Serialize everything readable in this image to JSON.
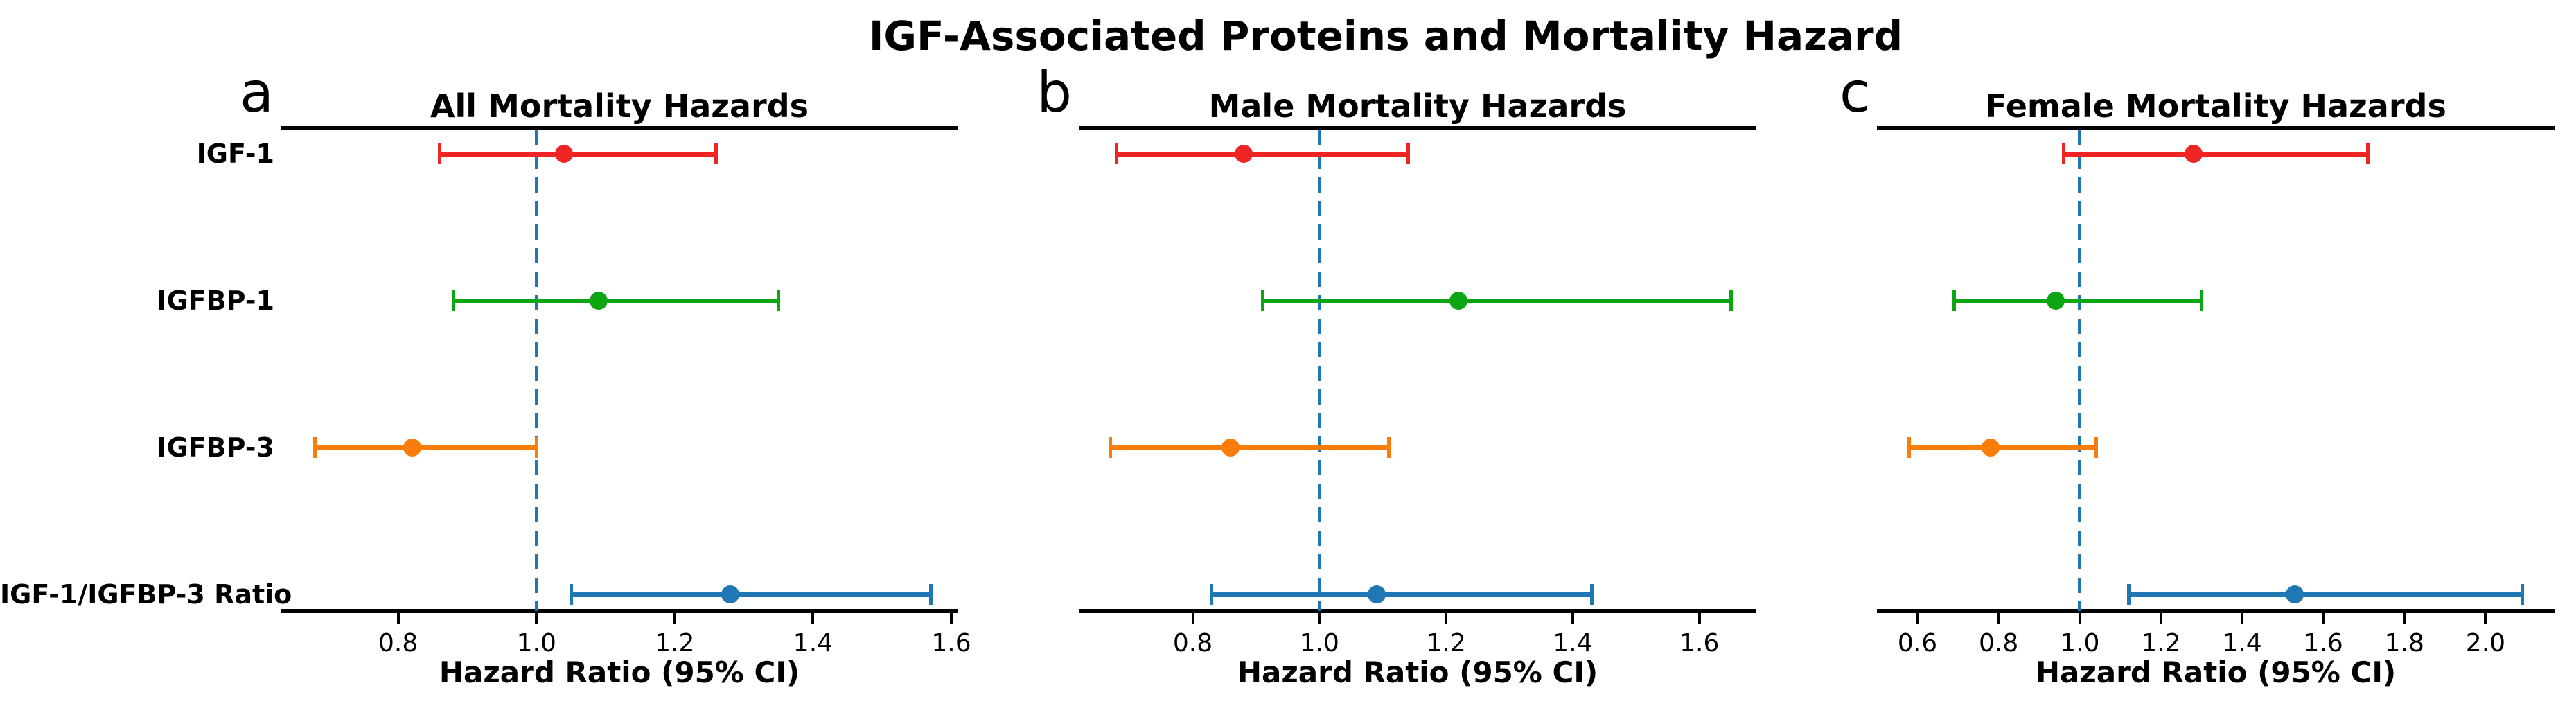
{
  "suptitle": "IGF-Associated Proteins and Mortality Hazard",
  "row_labels": [
    "IGF-1",
    "IGFBP-1",
    "IGFBP-3",
    "IGF-1/IGFBP-3 Ratio"
  ],
  "reference_value": 1.0,
  "colors": {
    "igf1": "#ef2424",
    "igfbp1": "#0ba612",
    "igfbp3": "#fa7d09",
    "ratio": "#1f77b4",
    "reference_line": "#1f77b4",
    "axis": "#000000"
  },
  "chart_data": [
    {
      "type": "scatter",
      "panel_letter": "a",
      "title": "All Mortality Hazards",
      "xlabel": "Hazard Ratio (95% CI)",
      "xlim": [
        0.63,
        1.61
      ],
      "xticks": [
        0.8,
        1.0,
        1.2,
        1.4,
        1.6
      ],
      "reference_line": 1.0,
      "show_row_labels": true,
      "rows": [
        {
          "label": "IGF-1",
          "hr": 1.04,
          "ci_low": 0.86,
          "ci_high": 1.26,
          "color": "#ef2424"
        },
        {
          "label": "IGFBP-1",
          "hr": 1.09,
          "ci_low": 0.88,
          "ci_high": 1.35,
          "color": "#0ba612"
        },
        {
          "label": "IGFBP-3",
          "hr": 0.82,
          "ci_low": 0.68,
          "ci_high": 1.0,
          "color": "#fa7d09"
        },
        {
          "label": "IGF-1/IGFBP-3 Ratio",
          "hr": 1.28,
          "ci_low": 1.05,
          "ci_high": 1.57,
          "color": "#1f77b4"
        }
      ]
    },
    {
      "type": "scatter",
      "panel_letter": "b",
      "title": "Male Mortality Hazards",
      "xlabel": "Hazard Ratio (95% CI)",
      "xlim": [
        0.62,
        1.69
      ],
      "xticks": [
        0.8,
        1.0,
        1.2,
        1.4,
        1.6
      ],
      "reference_line": 1.0,
      "show_row_labels": false,
      "rows": [
        {
          "label": "IGF-1",
          "hr": 0.88,
          "ci_low": 0.68,
          "ci_high": 1.14,
          "color": "#ef2424"
        },
        {
          "label": "IGFBP-1",
          "hr": 1.22,
          "ci_low": 0.91,
          "ci_high": 1.65,
          "color": "#0ba612"
        },
        {
          "label": "IGFBP-3",
          "hr": 0.86,
          "ci_low": 0.67,
          "ci_high": 1.11,
          "color": "#fa7d09"
        },
        {
          "label": "IGF-1/IGFBP-3 Ratio",
          "hr": 1.09,
          "ci_low": 0.83,
          "ci_high": 1.43,
          "color": "#1f77b4"
        }
      ]
    },
    {
      "type": "scatter",
      "panel_letter": "c",
      "title": "Female Mortality Hazards",
      "xlabel": "Hazard Ratio (95% CI)",
      "xlim": [
        0.5,
        2.17
      ],
      "xticks": [
        0.6,
        0.8,
        1.0,
        1.2,
        1.4,
        1.6,
        1.8,
        2.0
      ],
      "reference_line": 1.0,
      "show_row_labels": false,
      "rows": [
        {
          "label": "IGF-1",
          "hr": 1.28,
          "ci_low": 0.96,
          "ci_high": 1.71,
          "color": "#ef2424"
        },
        {
          "label": "IGFBP-1",
          "hr": 0.94,
          "ci_low": 0.69,
          "ci_high": 1.3,
          "color": "#0ba612"
        },
        {
          "label": "IGFBP-3",
          "hr": 0.78,
          "ci_low": 0.58,
          "ci_high": 1.04,
          "color": "#fa7d09"
        },
        {
          "label": "IGF-1/IGFBP-3 Ratio",
          "hr": 1.53,
          "ci_low": 1.12,
          "ci_high": 2.09,
          "color": "#1f77b4"
        }
      ]
    }
  ]
}
